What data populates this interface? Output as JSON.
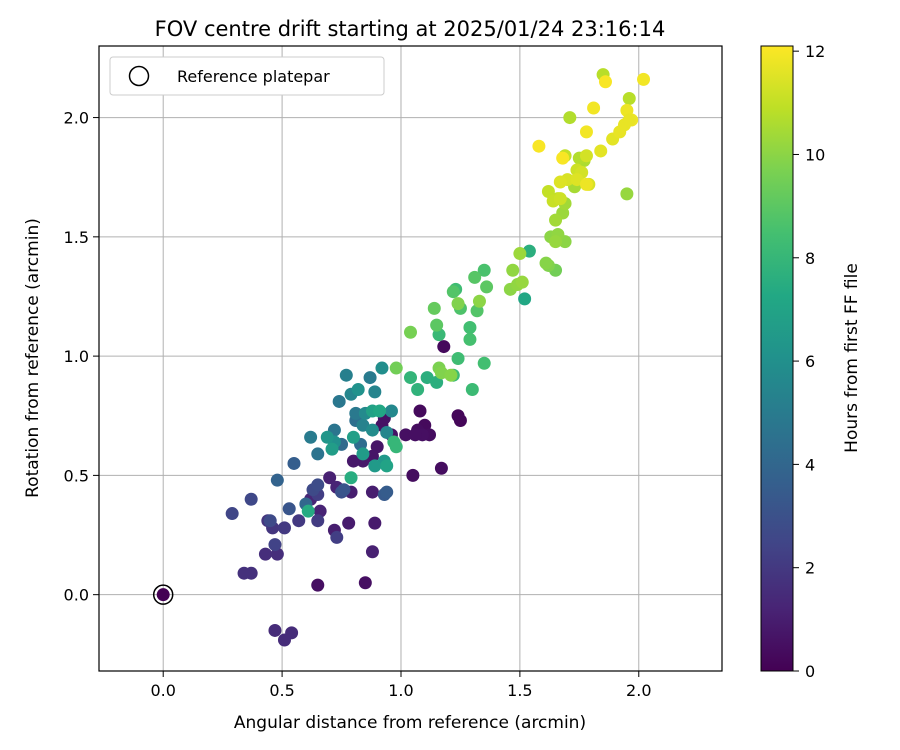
{
  "chart_data": {
    "type": "scatter",
    "title": "FOV centre drift starting at 2025/01/24 23:16:14",
    "xlabel": "Angular distance from reference (arcmin)",
    "ylabel": "Rotation from reference (arcmin)",
    "xlim": [
      -0.27,
      2.35
    ],
    "ylim": [
      -0.32,
      2.3
    ],
    "xticks": [
      0.0,
      0.5,
      1.0,
      1.5,
      2.0
    ],
    "yticks": [
      0.0,
      0.5,
      1.0,
      1.5,
      2.0
    ],
    "xtick_labels": [
      "0.0",
      "0.5",
      "1.0",
      "1.5",
      "2.0"
    ],
    "ytick_labels": [
      "0.0",
      "0.5",
      "1.0",
      "1.5",
      "2.0"
    ],
    "grid": true,
    "colormap": "viridis",
    "colorbar": {
      "label": "Hours from first FF file",
      "range": [
        0,
        12.1
      ],
      "ticks": [
        0,
        2,
        4,
        6,
        8,
        10,
        12
      ],
      "tick_labels": [
        "0",
        "2",
        "4",
        "6",
        "8",
        "10",
        "12"
      ]
    },
    "legend": {
      "position": "top-left",
      "entries": [
        {
          "label": "Reference platepar",
          "marker": "open-circle",
          "color": "#000000"
        }
      ]
    },
    "reference_point": {
      "x": 0.0,
      "y": 0.0
    },
    "points": [
      [
        0.0,
        0.0,
        0.0
      ],
      [
        1.05,
        0.5,
        0.4
      ],
      [
        1.17,
        0.53,
        0.4
      ],
      [
        0.85,
        0.05,
        0.5
      ],
      [
        0.65,
        0.04,
        0.5
      ],
      [
        1.08,
        0.77,
        0.3
      ],
      [
        1.1,
        0.71,
        0.3
      ],
      [
        1.07,
        0.69,
        0.4
      ],
      [
        1.12,
        0.67,
        0.4
      ],
      [
        1.24,
        0.75,
        0.2
      ],
      [
        1.25,
        0.73,
        0.2
      ],
      [
        1.18,
        1.04,
        0.3
      ],
      [
        1.02,
        0.67,
        0.5
      ],
      [
        1.09,
        0.67,
        0.5
      ],
      [
        1.06,
        0.67,
        0.5
      ],
      [
        0.96,
        0.67,
        0.6
      ],
      [
        0.92,
        0.71,
        0.6
      ],
      [
        0.93,
        0.74,
        0.6
      ],
      [
        0.9,
        0.62,
        0.7
      ],
      [
        0.88,
        0.58,
        0.7
      ],
      [
        0.84,
        0.56,
        0.8
      ],
      [
        0.8,
        0.56,
        0.8
      ],
      [
        0.89,
        0.3,
        0.9
      ],
      [
        0.78,
        0.3,
        0.9
      ],
      [
        0.72,
        0.27,
        1.0
      ],
      [
        0.79,
        0.43,
        1.0
      ],
      [
        0.88,
        0.43,
        1.0
      ],
      [
        0.88,
        0.18,
        1.1
      ],
      [
        0.7,
        0.49,
        1.1
      ],
      [
        0.73,
        0.45,
        1.2
      ],
      [
        0.66,
        0.35,
        1.2
      ],
      [
        0.62,
        0.4,
        1.3
      ],
      [
        0.47,
        -0.15,
        1.5
      ],
      [
        0.54,
        -0.16,
        1.5
      ],
      [
        0.51,
        -0.19,
        1.5
      ],
      [
        0.48,
        0.17,
        1.6
      ],
      [
        0.43,
        0.17,
        1.6
      ],
      [
        0.37,
        0.09,
        1.7
      ],
      [
        0.34,
        0.09,
        1.7
      ],
      [
        0.44,
        0.31,
        1.8
      ],
      [
        0.46,
        0.28,
        1.9
      ],
      [
        0.51,
        0.28,
        2.0
      ],
      [
        0.57,
        0.31,
        2.0
      ],
      [
        0.65,
        0.31,
        2.1
      ],
      [
        0.65,
        0.42,
        2.2
      ],
      [
        0.73,
        0.24,
        2.2
      ],
      [
        0.47,
        0.21,
        2.4
      ],
      [
        0.29,
        0.34,
        2.5
      ],
      [
        0.37,
        0.4,
        2.6
      ],
      [
        0.45,
        0.31,
        2.7
      ],
      [
        0.63,
        0.44,
        2.7
      ],
      [
        0.65,
        0.46,
        2.8
      ],
      [
        0.75,
        0.43,
        3.0
      ],
      [
        0.53,
        0.36,
        3.2
      ],
      [
        0.76,
        0.44,
        3.2
      ],
      [
        0.93,
        0.42,
        3.4
      ],
      [
        0.94,
        0.43,
        3.5
      ],
      [
        0.55,
        0.55,
        3.6
      ],
      [
        0.48,
        0.48,
        3.8
      ],
      [
        0.6,
        0.38,
        4.0
      ],
      [
        0.75,
        0.63,
        4.2
      ],
      [
        0.83,
        0.63,
        4.3
      ],
      [
        0.81,
        0.73,
        4.4
      ],
      [
        0.65,
        0.59,
        4.6
      ],
      [
        0.72,
        0.69,
        4.7
      ],
      [
        0.74,
        0.81,
        4.8
      ],
      [
        0.81,
        0.76,
        4.9
      ],
      [
        0.62,
        0.66,
        5.0
      ],
      [
        0.87,
        0.91,
        5.0
      ],
      [
        0.77,
        0.92,
        5.2
      ],
      [
        0.84,
        0.71,
        5.3
      ],
      [
        0.89,
        0.85,
        5.4
      ],
      [
        0.79,
        0.84,
        5.5
      ],
      [
        0.94,
        0.68,
        5.5
      ],
      [
        0.96,
        0.77,
        5.6
      ],
      [
        0.85,
        0.76,
        5.7
      ],
      [
        0.88,
        0.69,
        5.8
      ],
      [
        0.92,
        0.95,
        5.9
      ],
      [
        0.72,
        0.64,
        6.0
      ],
      [
        0.82,
        0.86,
        6.1
      ],
      [
        0.69,
        0.66,
        6.3
      ],
      [
        0.93,
        0.56,
        6.4
      ],
      [
        0.89,
        0.54,
        6.5
      ],
      [
        0.84,
        0.59,
        6.6
      ],
      [
        0.71,
        0.61,
        6.7
      ],
      [
        0.8,
        0.66,
        6.8
      ],
      [
        0.88,
        0.77,
        6.9
      ],
      [
        0.94,
        0.54,
        7.0
      ],
      [
        0.91,
        0.77,
        7.2
      ],
      [
        0.61,
        0.35,
        7.4
      ],
      [
        0.79,
        0.49,
        7.5
      ],
      [
        1.11,
        0.91,
        7.6
      ],
      [
        1.15,
        0.89,
        7.6
      ],
      [
        1.07,
        0.86,
        7.8
      ],
      [
        1.04,
        0.91,
        7.9
      ],
      [
        0.97,
        0.64,
        8.0
      ],
      [
        0.98,
        0.62,
        8.0
      ],
      [
        1.16,
        1.09,
        8.1
      ],
      [
        1.22,
        0.92,
        8.2
      ],
      [
        1.24,
        0.99,
        8.3
      ],
      [
        1.23,
        1.28,
        8.3
      ],
      [
        1.29,
        1.12,
        8.4
      ],
      [
        1.35,
        0.97,
        8.4
      ],
      [
        1.29,
        1.07,
        8.5
      ],
      [
        1.35,
        1.36,
        8.6
      ],
      [
        1.25,
        1.2,
        8.7
      ],
      [
        1.32,
        1.19,
        8.8
      ],
      [
        1.22,
        1.27,
        8.8
      ],
      [
        1.31,
        1.33,
        8.9
      ],
      [
        1.36,
        1.29,
        9.0
      ],
      [
        1.52,
        1.24,
        7.2
      ],
      [
        1.54,
        1.44,
        7.6
      ],
      [
        1.15,
        1.13,
        9.0
      ],
      [
        1.14,
        1.2,
        9.2
      ],
      [
        1.3,
        0.86,
        8.2
      ],
      [
        0.98,
        0.95,
        9.5
      ],
      [
        1.04,
        1.1,
        9.6
      ],
      [
        1.16,
        0.95,
        9.7
      ],
      [
        1.17,
        0.93,
        9.8
      ],
      [
        1.24,
        1.22,
        9.8
      ],
      [
        1.21,
        0.92,
        9.9
      ],
      [
        1.33,
        1.23,
        10.0
      ],
      [
        1.46,
        1.28,
        10.0
      ],
      [
        1.47,
        1.36,
        10.1
      ],
      [
        1.49,
        1.3,
        10.1
      ],
      [
        1.51,
        1.31,
        10.2
      ],
      [
        1.5,
        1.43,
        10.3
      ],
      [
        1.65,
        1.36,
        9.5
      ],
      [
        1.62,
        1.38,
        9.8
      ],
      [
        1.61,
        1.39,
        9.9
      ],
      [
        1.63,
        1.5,
        10.0
      ],
      [
        1.69,
        1.48,
        10.0
      ],
      [
        1.66,
        1.51,
        10.1
      ],
      [
        1.65,
        1.48,
        10.2
      ],
      [
        1.68,
        1.6,
        10.3
      ],
      [
        1.65,
        1.57,
        10.4
      ],
      [
        1.69,
        1.64,
        10.4
      ],
      [
        1.73,
        1.71,
        10.5
      ],
      [
        1.77,
        1.82,
        10.6
      ],
      [
        1.75,
        1.83,
        10.7
      ],
      [
        1.71,
        2.0,
        10.7
      ],
      [
        1.85,
        2.18,
        10.8
      ],
      [
        1.96,
        2.08,
        10.8
      ],
      [
        1.95,
        1.68,
        10.2
      ],
      [
        1.69,
        1.84,
        11.0
      ],
      [
        1.66,
        1.66,
        11.0
      ],
      [
        1.62,
        1.69,
        11.0
      ],
      [
        1.64,
        1.65,
        11.1
      ],
      [
        1.67,
        1.66,
        11.2
      ],
      [
        1.74,
        1.78,
        11.2
      ],
      [
        1.76,
        1.77,
        11.3
      ],
      [
        1.78,
        1.84,
        11.3
      ],
      [
        1.79,
        1.72,
        11.4
      ],
      [
        1.7,
        1.74,
        11.4
      ],
      [
        1.67,
        1.73,
        11.5
      ],
      [
        1.74,
        1.74,
        11.5
      ],
      [
        1.84,
        1.86,
        11.6
      ],
      [
        1.89,
        1.91,
        11.6
      ],
      [
        1.92,
        1.94,
        11.7
      ],
      [
        1.94,
        1.97,
        11.7
      ],
      [
        1.97,
        1.99,
        11.8
      ],
      [
        1.95,
        2.03,
        11.8
      ],
      [
        2.02,
        2.16,
        11.9
      ],
      [
        1.81,
        2.04,
        11.9
      ],
      [
        1.78,
        1.94,
        11.9
      ],
      [
        1.58,
        1.88,
        12.0
      ],
      [
        1.68,
        1.83,
        12.0
      ],
      [
        1.86,
        2.15,
        12.0
      ],
      [
        1.78,
        1.72,
        11.8
      ],
      [
        1.96,
        1.99,
        11.7
      ]
    ]
  }
}
